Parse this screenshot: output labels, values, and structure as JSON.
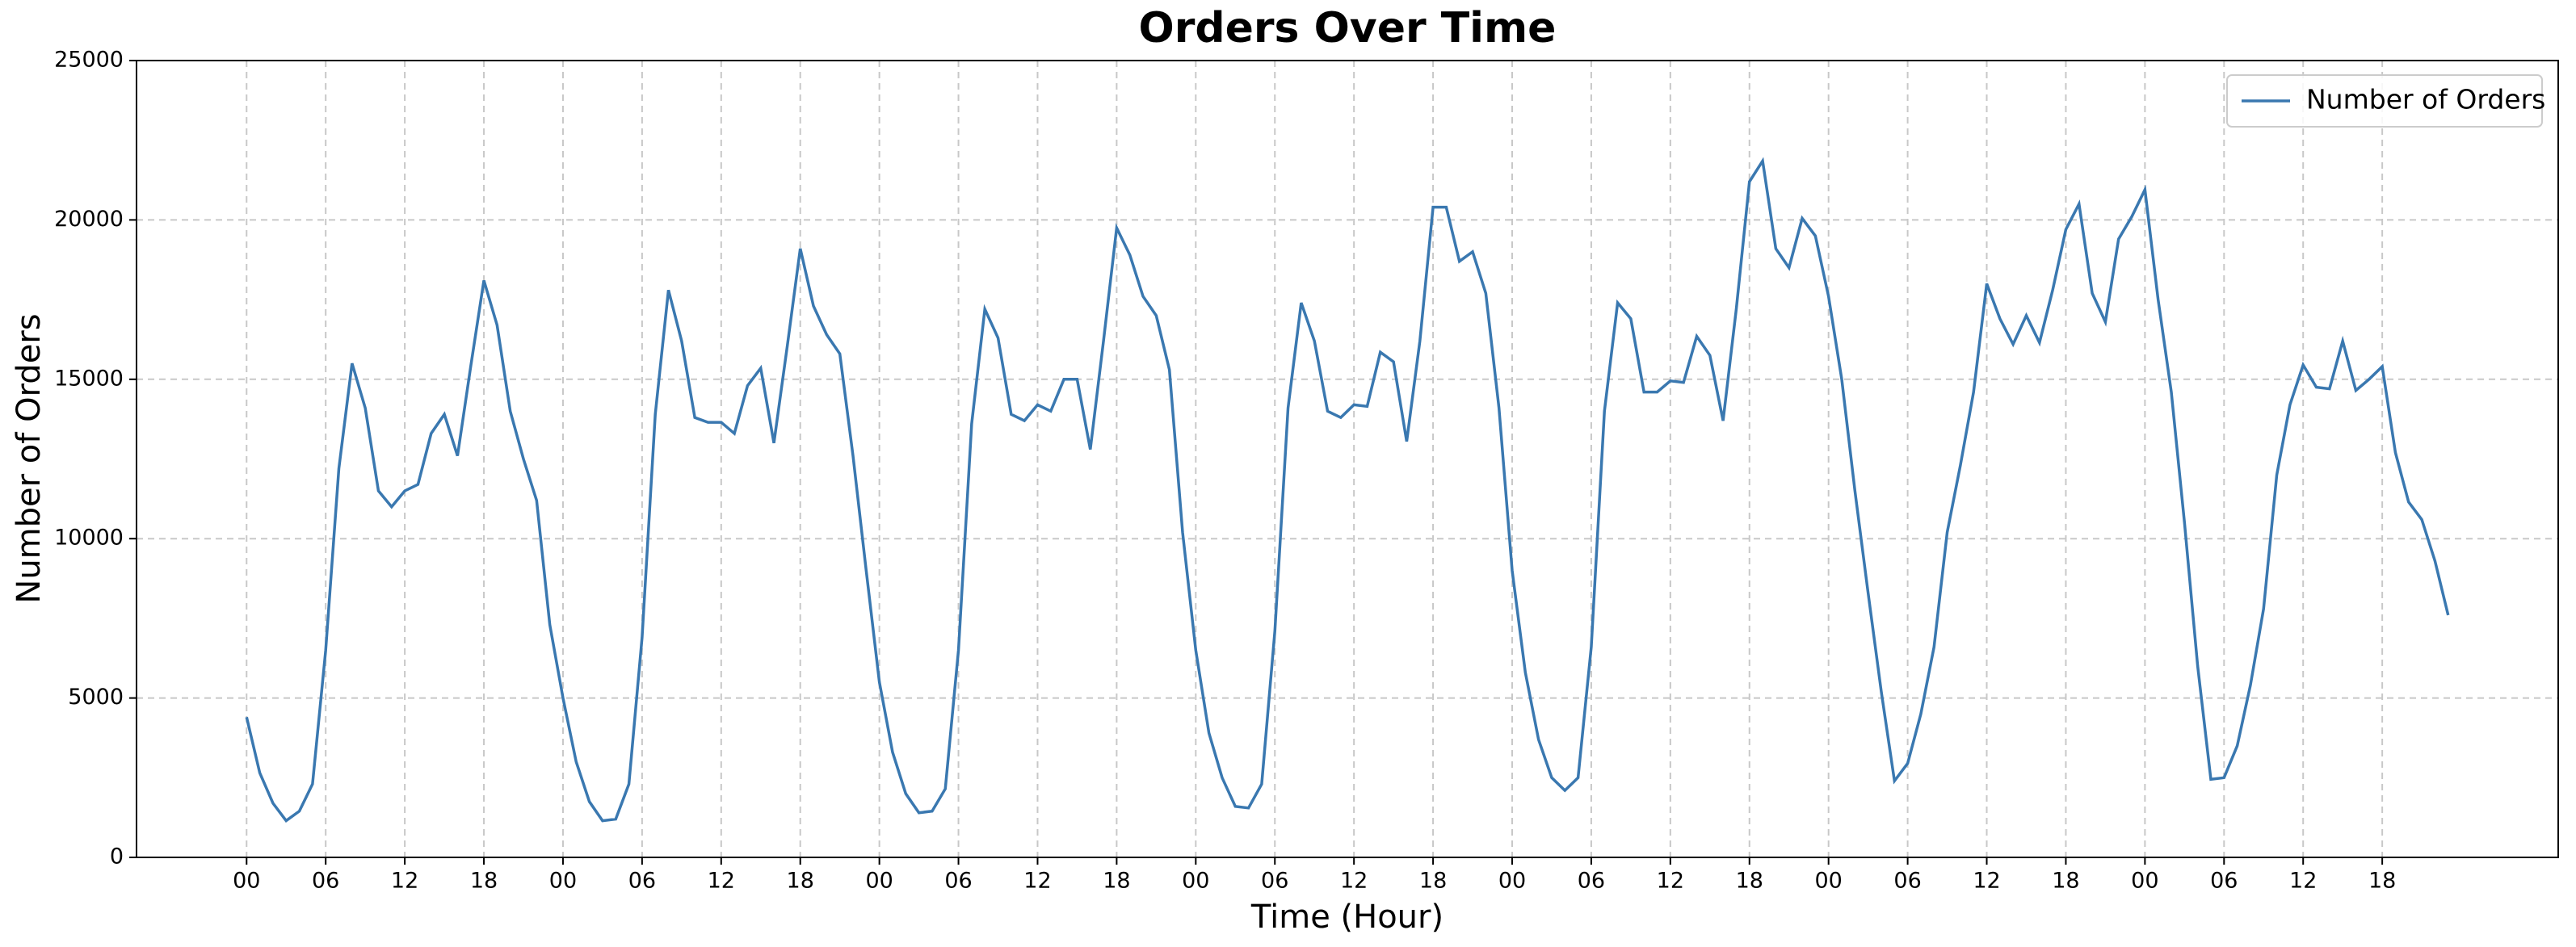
{
  "chart_data": {
    "type": "line",
    "title": "Orders Over Time",
    "x_label": "Time (Hour)",
    "y_label": "Number of Orders",
    "x": [
      0,
      1,
      2,
      3,
      4,
      5,
      6,
      7,
      8,
      9,
      10,
      11,
      12,
      13,
      14,
      15,
      16,
      17,
      18,
      19,
      20,
      21,
      22,
      23,
      24,
      25,
      26,
      27,
      28,
      29,
      30,
      31,
      32,
      33,
      34,
      35,
      36,
      37,
      38,
      39,
      40,
      41,
      42,
      43,
      44,
      45,
      46,
      47,
      48,
      49,
      50,
      51,
      52,
      53,
      54,
      55,
      56,
      57,
      58,
      59,
      60,
      61,
      62,
      63,
      64,
      65,
      66,
      67,
      68,
      69,
      70,
      71,
      72,
      73,
      74,
      75,
      76,
      77,
      78,
      79,
      80,
      81,
      82,
      83,
      84,
      85,
      86,
      87,
      88,
      89,
      90,
      91,
      92,
      93,
      94,
      95,
      96,
      97,
      98,
      99,
      100,
      101,
      102,
      103,
      104,
      105,
      106,
      107,
      108,
      109,
      110,
      111,
      112,
      113,
      114,
      115,
      116,
      117,
      118,
      119,
      120,
      121,
      122,
      123,
      124,
      125,
      126,
      127,
      128,
      129,
      130,
      131,
      132,
      133,
      134,
      135,
      136,
      137,
      138,
      139,
      140,
      141,
      142,
      143,
      144,
      145,
      146,
      147,
      148,
      149,
      150,
      151,
      152,
      153,
      154,
      155,
      156,
      157,
      158,
      159,
      160,
      161,
      162,
      163,
      164,
      165,
      166,
      167
    ],
    "series": [
      {
        "name": "Number of Orders",
        "color": "#3a78b0",
        "values": [
          4400,
          2650,
          1700,
          1150,
          1450,
          2300,
          6500,
          12200,
          15500,
          14100,
          11500,
          11000,
          11500,
          11700,
          13300,
          13900,
          12600,
          15400,
          18100,
          16700,
          14000,
          12500,
          11200,
          7300,
          5000,
          3000,
          1750,
          1150,
          1200,
          2300,
          6900,
          13900,
          17800,
          16200,
          13800,
          13650,
          13650,
          13300,
          14800,
          15350,
          13000,
          16000,
          19100,
          17300,
          16400,
          15800,
          12600,
          9000,
          5500,
          3300,
          2000,
          1400,
          1450,
          2150,
          6500,
          13600,
          17200,
          16300,
          13900,
          13700,
          14200,
          14000,
          15000,
          15000,
          12800,
          16200,
          19750,
          18900,
          17600,
          17000,
          15300,
          10200,
          6500,
          3900,
          2500,
          1600,
          1550,
          2300,
          7100,
          14100,
          17400,
          16200,
          14000,
          13800,
          14200,
          14150,
          15850,
          15550,
          13050,
          16200,
          20400,
          20400,
          18700,
          19000,
          17700,
          14100,
          9000,
          5800,
          3700,
          2500,
          2100,
          2500,
          6600,
          14000,
          17400,
          16900,
          14600,
          14600,
          14950,
          14900,
          16350,
          15750,
          13700,
          17200,
          21200,
          21850,
          19100,
          18500,
          20050,
          19500,
          17600,
          15000,
          11500,
          8300,
          5200,
          2400,
          2950,
          4500,
          6600,
          10200,
          12300,
          14600,
          18000,
          16900,
          16100,
          17000,
          16150,
          17800,
          19700,
          20500,
          17700,
          16800,
          19400,
          20100,
          20950,
          17500,
          14600,
          10500,
          6000,
          2450,
          2500,
          3500,
          5400,
          7800,
          12000,
          14200,
          15450,
          14750,
          14700,
          16200,
          14650,
          15000,
          15400,
          12700,
          11150,
          10600,
          9300,
          7600
        ]
      }
    ],
    "xlim": [
      -8.35,
      175.35
    ],
    "xticks": [
      {
        "value": 0,
        "label": "00"
      },
      {
        "value": 6,
        "label": "06"
      },
      {
        "value": 12,
        "label": "12"
      },
      {
        "value": 18,
        "label": "18"
      },
      {
        "value": 24,
        "label": "00"
      },
      {
        "value": 30,
        "label": "06"
      },
      {
        "value": 36,
        "label": "12"
      },
      {
        "value": 42,
        "label": "18"
      },
      {
        "value": 48,
        "label": "00"
      },
      {
        "value": 54,
        "label": "06"
      },
      {
        "value": 60,
        "label": "12"
      },
      {
        "value": 66,
        "label": "18"
      },
      {
        "value": 72,
        "label": "00"
      },
      {
        "value": 78,
        "label": "06"
      },
      {
        "value": 84,
        "label": "12"
      },
      {
        "value": 90,
        "label": "18"
      },
      {
        "value": 96,
        "label": "00"
      },
      {
        "value": 102,
        "label": "06"
      },
      {
        "value": 108,
        "label": "12"
      },
      {
        "value": 114,
        "label": "18"
      },
      {
        "value": 120,
        "label": "00"
      },
      {
        "value": 126,
        "label": "06"
      },
      {
        "value": 132,
        "label": "12"
      },
      {
        "value": 138,
        "label": "18"
      },
      {
        "value": 144,
        "label": "00"
      },
      {
        "value": 150,
        "label": "06"
      },
      {
        "value": 156,
        "label": "12"
      },
      {
        "value": 162,
        "label": "18"
      }
    ],
    "ylim": [
      0,
      25000
    ],
    "yticks": [
      0,
      5000,
      10000,
      15000,
      20000,
      25000
    ],
    "grid": true,
    "legend": "upper right"
  }
}
